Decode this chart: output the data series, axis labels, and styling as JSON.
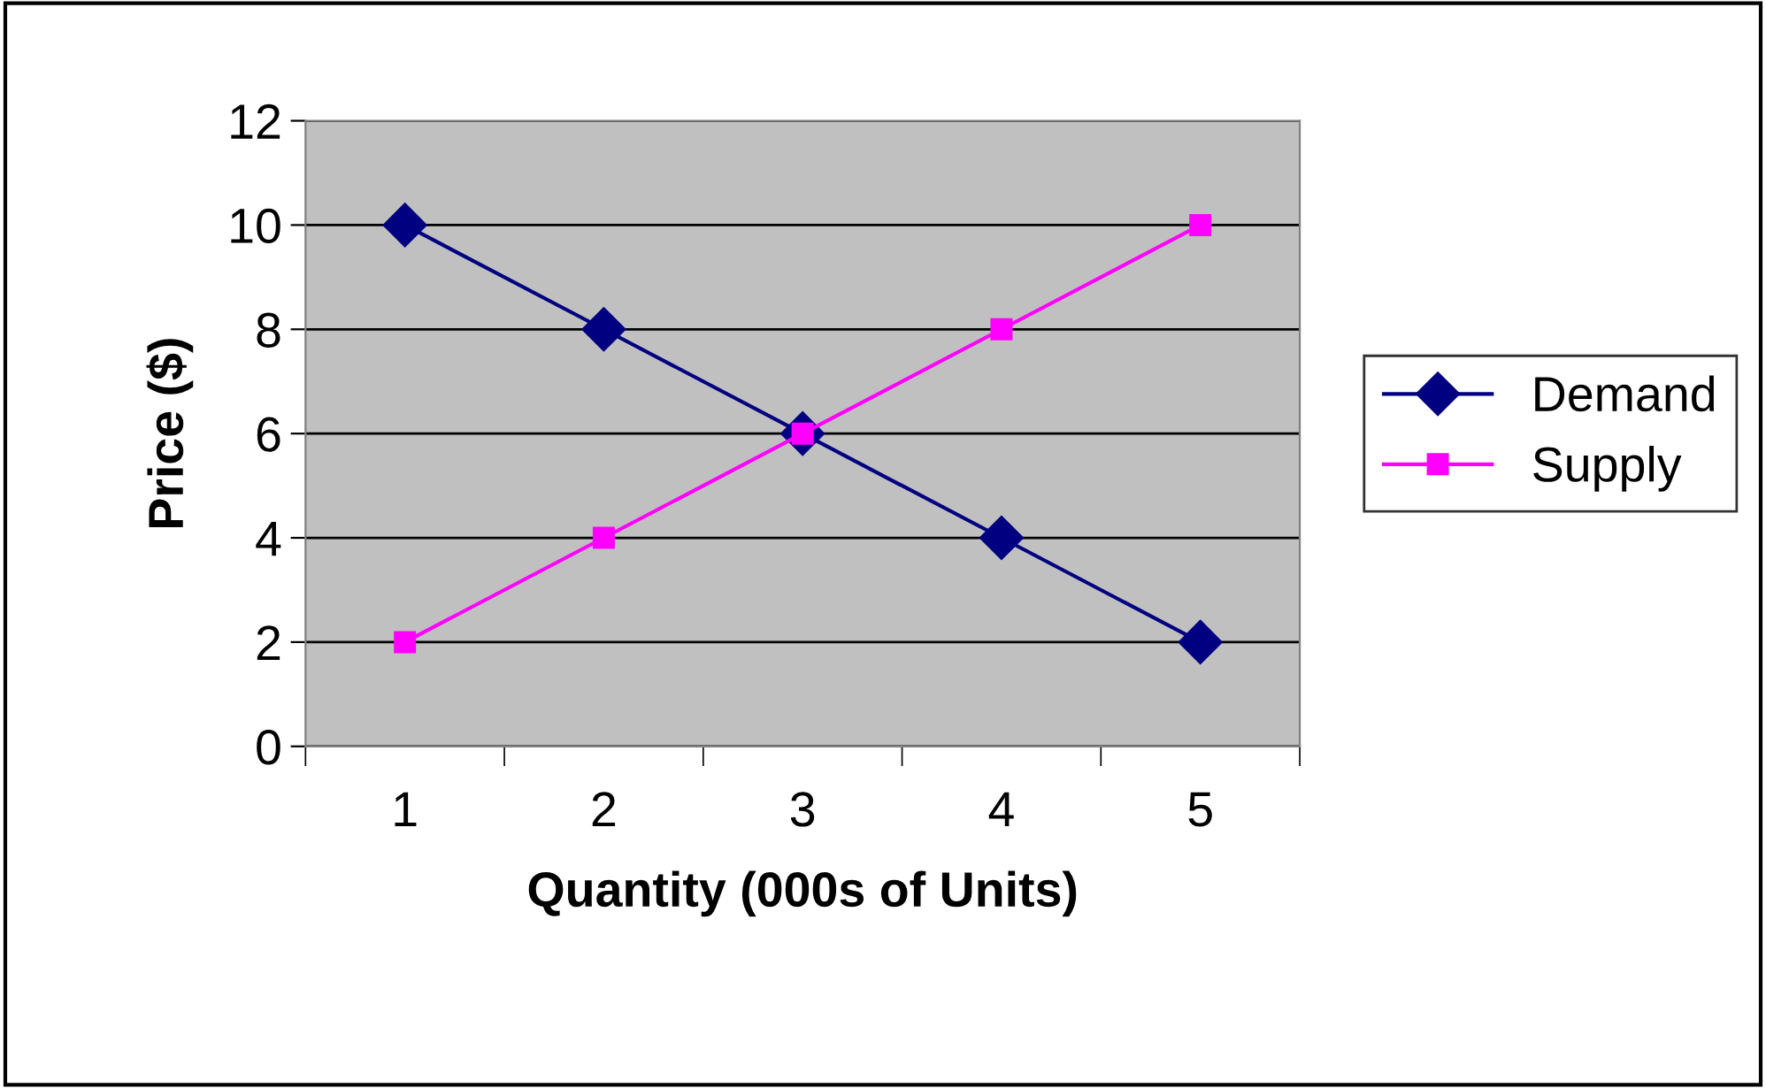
{
  "chart_data": {
    "type": "line",
    "xlabel": "Quantity (000s of Units)",
    "ylabel": "Price ($)",
    "categories": [
      "1",
      "2",
      "3",
      "4",
      "5"
    ],
    "series": [
      {
        "name": "Demand",
        "color": "#000080",
        "marker": "diamond",
        "values": [
          10,
          8,
          6,
          4,
          2
        ]
      },
      {
        "name": "Supply",
        "color": "#ff00ff",
        "marker": "square",
        "values": [
          2,
          4,
          6,
          8,
          10
        ]
      }
    ],
    "ylim": [
      0,
      12
    ],
    "yticks": [
      0,
      2,
      4,
      6,
      8,
      10,
      12
    ],
    "grid": "y",
    "legend": "right",
    "line_style": "solid"
  }
}
